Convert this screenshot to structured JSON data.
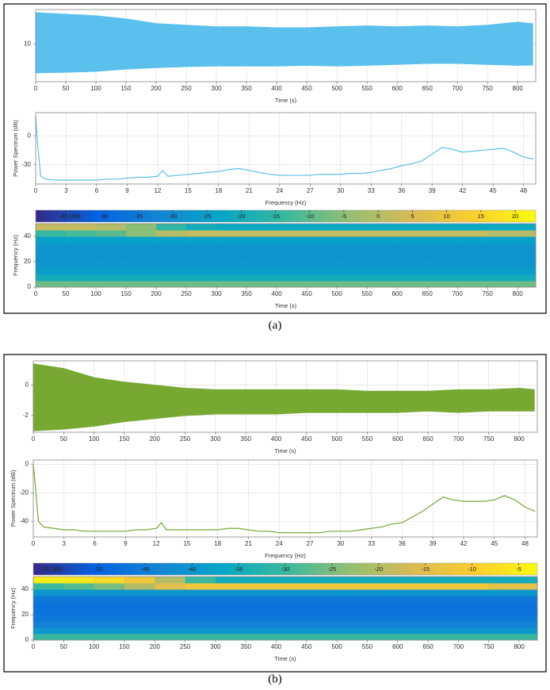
{
  "captions": [
    "(a)",
    "(b)"
  ],
  "chart_data": [
    {
      "type": "range",
      "xlabel": "Time (s)",
      "color": "#5bc0eb",
      "x": [
        0,
        50,
        100,
        150,
        200,
        250,
        300,
        350,
        400,
        450,
        500,
        550,
        600,
        650,
        700,
        750,
        800,
        825
      ],
      "high": [
        20,
        19.5,
        19,
        18,
        16.5,
        16,
        15.5,
        15.5,
        15.2,
        15.2,
        15.5,
        15.8,
        15.5,
        15.8,
        15.5,
        16,
        17,
        16.5
      ],
      "low": [
        0.8,
        1,
        1.3,
        2,
        2.5,
        2.8,
        3,
        3,
        3,
        3.2,
        3,
        3.2,
        3.5,
        3.8,
        3.8,
        3.5,
        3.2,
        3.3
      ],
      "xlim": [
        0,
        830
      ],
      "ylim": [
        -2,
        21
      ],
      "xticks": [
        0,
        50,
        100,
        150,
        200,
        250,
        300,
        350,
        400,
        450,
        500,
        550,
        600,
        650,
        700,
        750,
        800
      ],
      "yticks": [
        10
      ],
      "grid": true
    },
    {
      "type": "line",
      "xlabel": "Frequency (Hz)",
      "ylabel": "Power Spectrum (dB)",
      "color": "#5bc0eb",
      "x": [
        0,
        0.2,
        0.5,
        1,
        2,
        3,
        4,
        5,
        6,
        7,
        8,
        9,
        10,
        11,
        12,
        12.5,
        13,
        14,
        15,
        16,
        17,
        18,
        19,
        20,
        21,
        22,
        23,
        24,
        25,
        26,
        27,
        28,
        29,
        30,
        31,
        32,
        33,
        34,
        35,
        36,
        37,
        38,
        39,
        40,
        41,
        42,
        43,
        44,
        45,
        46,
        47,
        48,
        49
      ],
      "values": [
        20,
        -10,
        -42,
        -45,
        -46,
        -46,
        -46,
        -46,
        -46,
        -45,
        -45,
        -44,
        -43,
        -43,
        -42,
        -36,
        -42,
        -41,
        -40,
        -39,
        -38,
        -37,
        -35,
        -34,
        -36,
        -38,
        -40,
        -41,
        -41,
        -41,
        -41,
        -40,
        -40,
        -40,
        -39,
        -39,
        -38,
        -36,
        -34,
        -31,
        -29,
        -26,
        -19,
        -12,
        -14,
        -17,
        -16,
        -15,
        -14,
        -13,
        -17,
        -22,
        -24
      ],
      "xlim": [
        0,
        49.2
      ],
      "ylim": [
        -50,
        24
      ],
      "xticks": [
        0,
        3,
        6,
        9,
        12,
        15,
        18,
        21,
        24,
        27,
        30,
        33,
        36,
        39,
        42,
        45,
        48
      ],
      "yticks": [
        0,
        -30
      ],
      "grid": true
    },
    {
      "type": "heatmap",
      "xlabel": "Time (s)",
      "ylabel": "Frequency (Hz)",
      "xbins": [
        0,
        50,
        100,
        150,
        200,
        250,
        300,
        350,
        400,
        450,
        500,
        550,
        600,
        650,
        700,
        750,
        800,
        830
      ],
      "ybins": [
        0,
        5,
        10,
        15,
        20,
        25,
        30,
        35,
        40,
        45,
        50
      ],
      "z": [
        [
          -8,
          -8,
          -8,
          -8,
          -8,
          -8,
          -8,
          -8,
          -8,
          -8,
          -8,
          -8,
          -8,
          -8,
          -8,
          -8,
          -8
        ],
        [
          -20,
          -20,
          -20,
          -20,
          -20,
          -20,
          -20,
          -20,
          -20,
          -20,
          -20,
          -20,
          -20,
          -20,
          -20,
          -20,
          -20
        ],
        [
          -25,
          -25,
          -25,
          -25,
          -25,
          -25,
          -25,
          -25,
          -25,
          -25,
          -25,
          -25,
          -25,
          -25,
          -25,
          -25,
          -25
        ],
        [
          -27,
          -27,
          -27,
          -27,
          -27,
          -27,
          -27,
          -27,
          -27,
          -27,
          -27,
          -27,
          -27,
          -27,
          -27,
          -27,
          -27
        ],
        [
          -28,
          -28,
          -28,
          -28,
          -28,
          -28,
          -28,
          -28,
          -28,
          -28,
          -28,
          -28,
          -28,
          -28,
          -28,
          -28,
          -28
        ],
        [
          -28,
          -28,
          -28,
          -28,
          -28,
          -28,
          -28,
          -28,
          -28,
          -28,
          -28,
          -28,
          -28,
          -28,
          -28,
          -28,
          -28
        ],
        [
          -27,
          -27,
          -27,
          -27,
          -27,
          -27,
          -27,
          -27,
          -27,
          -27,
          -27,
          -27,
          -27,
          -27,
          -27,
          -27,
          -27
        ],
        [
          -24,
          -24,
          -24,
          -24,
          -24,
          -24,
          -24,
          -24,
          -24,
          -24,
          -24,
          -24,
          -24,
          -24,
          -24,
          -24,
          -24
        ],
        [
          -14,
          -12,
          -10,
          -5,
          0,
          2,
          2,
          2,
          2,
          2,
          2,
          2,
          2,
          2,
          2,
          0,
          0
        ],
        [
          2,
          2,
          0,
          -5,
          -15,
          -20,
          -22,
          -22,
          -22,
          -22,
          -22,
          -22,
          -22,
          -22,
          -22,
          -22,
          -22
        ]
      ],
      "clim": [
        -50,
        23
      ],
      "colormap": [
        "#352a87",
        "#0363e1",
        "#1485d4",
        "#06a7c6",
        "#38b99e",
        "#92bf73",
        "#d9ba56",
        "#fcce2e",
        "#f9fb0e"
      ],
      "cticks": [
        {
          "value": -45,
          "label": "-45 (dB)"
        },
        -40,
        -35,
        -30,
        -25,
        -20,
        -15,
        -10,
        -5,
        0,
        5,
        10,
        15,
        20
      ],
      "xlim": [
        0,
        830
      ],
      "ylim": [
        0,
        50
      ],
      "xticks": [
        0,
        50,
        100,
        150,
        200,
        250,
        300,
        350,
        400,
        450,
        500,
        550,
        600,
        650,
        700,
        750,
        800
      ],
      "yticks": [
        0,
        20,
        40
      ],
      "grid": false
    },
    {
      "type": "range",
      "xlabel": "Time (s)",
      "color": "#76a832",
      "x": [
        0,
        50,
        100,
        150,
        200,
        250,
        300,
        350,
        400,
        450,
        500,
        550,
        600,
        650,
        700,
        750,
        800,
        825
      ],
      "high": [
        1.4,
        1.1,
        0.5,
        0.2,
        0,
        -0.2,
        -0.3,
        -0.3,
        -0.3,
        -0.3,
        -0.3,
        -0.4,
        -0.4,
        -0.4,
        -0.3,
        -0.3,
        -0.2,
        -0.3
      ],
      "low": [
        -3,
        -2.9,
        -2.7,
        -2.4,
        -2.2,
        -2,
        -1.9,
        -1.9,
        -1.9,
        -1.8,
        -1.8,
        -1.8,
        -1.8,
        -1.7,
        -1.8,
        -1.7,
        -1.7,
        -1.7
      ],
      "xlim": [
        0,
        830
      ],
      "ylim": [
        -3.1,
        1.6
      ],
      "xticks": [
        0,
        50,
        100,
        150,
        200,
        250,
        300,
        350,
        400,
        450,
        500,
        550,
        600,
        650,
        700,
        750,
        800
      ],
      "yticks": [
        0,
        -2
      ],
      "grid": true
    },
    {
      "type": "line",
      "xlabel": "Frequency (Hz)",
      "ylabel": "Power Spectrum (dB)",
      "color": "#76a832",
      "x": [
        0,
        0.2,
        0.5,
        1,
        2,
        3,
        4,
        5,
        6,
        7,
        8,
        9,
        10,
        11,
        12,
        12.5,
        13,
        14,
        15,
        16,
        17,
        18,
        19,
        20,
        21,
        22,
        23,
        24,
        25,
        26,
        27,
        28,
        29,
        30,
        31,
        32,
        33,
        34,
        35,
        36,
        37,
        38,
        39,
        40,
        41,
        42,
        43,
        44,
        45,
        46,
        47,
        48,
        49
      ],
      "values": [
        0,
        -15,
        -40,
        -44,
        -45,
        -46,
        -46,
        -47,
        -47,
        -47,
        -47,
        -47,
        -46,
        -46,
        -45,
        -41,
        -46,
        -46,
        -46,
        -46,
        -46,
        -46,
        -45,
        -45,
        -46,
        -47,
        -47,
        -48,
        -48,
        -48,
        -48,
        -48,
        -47,
        -47,
        -47,
        -46,
        -45,
        -44,
        -42,
        -41,
        -37,
        -33,
        -28,
        -23,
        -25,
        -26,
        -26,
        -26,
        -25,
        -22,
        -25,
        -30,
        -33
      ],
      "xlim": [
        0,
        49.2
      ],
      "ylim": [
        -51,
        3
      ],
      "xticks": [
        0,
        3,
        6,
        9,
        12,
        15,
        18,
        21,
        24,
        27,
        30,
        33,
        36,
        39,
        42,
        45,
        48
      ],
      "yticks": [
        0,
        -20,
        -40
      ],
      "grid": true
    },
    {
      "type": "heatmap",
      "xlabel": "Time (s)",
      "ylabel": "Frequency (Hz)",
      "xbins": [
        0,
        50,
        100,
        150,
        200,
        250,
        300,
        350,
        400,
        450,
        500,
        550,
        600,
        650,
        700,
        750,
        800,
        830
      ],
      "ybins": [
        0,
        5,
        10,
        15,
        20,
        25,
        30,
        35,
        40,
        45,
        50
      ],
      "z": [
        [
          -30,
          -30,
          -30,
          -30,
          -30,
          -30,
          -30,
          -30,
          -30,
          -30,
          -30,
          -30,
          -30,
          -30,
          -30,
          -30,
          -30
        ],
        [
          -40,
          -40,
          -40,
          -40,
          -40,
          -40,
          -40,
          -40,
          -40,
          -40,
          -40,
          -40,
          -40,
          -40,
          -40,
          -40,
          -40
        ],
        [
          -44,
          -44,
          -44,
          -44,
          -44,
          -44,
          -44,
          -44,
          -44,
          -44,
          -44,
          -44,
          -44,
          -44,
          -44,
          -44,
          -44
        ],
        [
          -46,
          -46,
          -46,
          -46,
          -46,
          -46,
          -46,
          -46,
          -46,
          -46,
          -46,
          -46,
          -46,
          -46,
          -46,
          -46,
          -46
        ],
        [
          -47,
          -47,
          -47,
          -47,
          -47,
          -47,
          -47,
          -47,
          -47,
          -47,
          -47,
          -47,
          -47,
          -47,
          -47,
          -47,
          -47
        ],
        [
          -47,
          -47,
          -47,
          -47,
          -47,
          -47,
          -47,
          -47,
          -47,
          -47,
          -47,
          -47,
          -47,
          -47,
          -47,
          -47,
          -47
        ],
        [
          -46,
          -46,
          -46,
          -46,
          -46,
          -46,
          -46,
          -46,
          -46,
          -46,
          -46,
          -46,
          -46,
          -46,
          -46,
          -46,
          -46
        ],
        [
          -40,
          -40,
          -40,
          -40,
          -40,
          -40,
          -40,
          -40,
          -40,
          -40,
          -40,
          -40,
          -40,
          -40,
          -40,
          -40,
          -40
        ],
        [
          -30,
          -28,
          -25,
          -20,
          -15,
          -12,
          -12,
          -12,
          -12,
          -12,
          -12,
          -12,
          -12,
          -12,
          -12,
          -14,
          -14
        ],
        [
          -5,
          -6,
          -8,
          -12,
          -20,
          -30,
          -35,
          -35,
          -35,
          -35,
          -35,
          -35,
          -35,
          -35,
          -35,
          -35,
          -35
        ]
      ],
      "clim": [
        -57,
        -3
      ],
      "colormap": [
        "#352a87",
        "#0363e1",
        "#1485d4",
        "#06a7c6",
        "#38b99e",
        "#92bf73",
        "#d9ba56",
        "#fcce2e",
        "#f9fb0e"
      ],
      "cticks": [
        {
          "value": -55,
          "label": "-55 (dB)"
        },
        -50,
        -45,
        -40,
        -35,
        -30,
        -25,
        -20,
        -15,
        -10,
        -5
      ],
      "xlim": [
        0,
        830
      ],
      "ylim": [
        0,
        50
      ],
      "xticks": [
        0,
        50,
        100,
        150,
        200,
        250,
        300,
        350,
        400,
        450,
        500,
        550,
        600,
        650,
        700,
        750,
        800
      ],
      "yticks": [
        0,
        20,
        40
      ],
      "grid": false
    }
  ]
}
